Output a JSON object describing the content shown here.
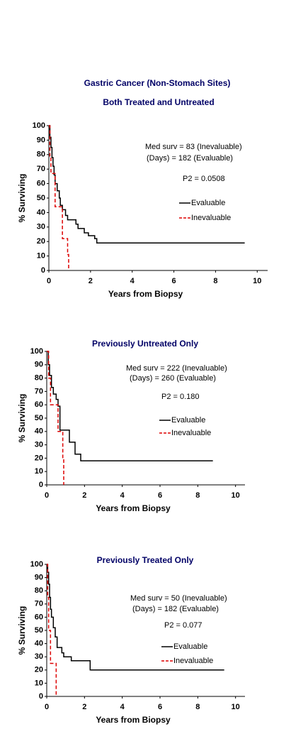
{
  "title": "Gastric Cancer (Non-Stomach Sites)",
  "chart_data": [
    {
      "type": "line",
      "title": "Both Treated and Untreated",
      "x_label": "Years from Biopsy",
      "y_label": "% Surviving",
      "annotations": [
        "Med surv =   83  (Inevaluable)",
        "(Days)   =   182 (Evaluable)",
        "P2 = 0.0508"
      ],
      "xlim": [
        0,
        10.5
      ],
      "ylim": [
        0,
        100
      ],
      "xticks": [
        0,
        2,
        4,
        6,
        8,
        10
      ],
      "yticks": [
        0,
        10,
        20,
        30,
        40,
        50,
        60,
        70,
        80,
        90,
        100
      ],
      "series": [
        {
          "name": "Evaluable",
          "color": "#000000",
          "dashed": false,
          "x": [
            0,
            0.05,
            0.05,
            0.1,
            0.1,
            0.15,
            0.15,
            0.2,
            0.2,
            0.25,
            0.25,
            0.3,
            0.3,
            0.4,
            0.4,
            0.5,
            0.5,
            0.55,
            0.55,
            0.65,
            0.65,
            0.8,
            0.8,
            0.9,
            0.9,
            1.3,
            1.3,
            1.4,
            1.4,
            1.7,
            1.7,
            1.9,
            1.9,
            2.2,
            2.2,
            2.3,
            2.3,
            9.4
          ],
          "values": [
            100,
            100,
            92,
            92,
            85,
            85,
            78,
            78,
            72,
            72,
            66,
            66,
            60,
            60,
            55,
            55,
            50,
            50,
            45,
            45,
            42,
            42,
            38,
            38,
            35,
            35,
            32,
            32,
            29,
            29,
            26,
            26,
            24,
            24,
            22,
            22,
            19,
            19
          ]
        },
        {
          "name": "Inevaluable",
          "color": "#dd0000",
          "dashed": true,
          "x": [
            0,
            0.05,
            0.05,
            0.1,
            0.1,
            0.3,
            0.3,
            0.65,
            0.65,
            0.9,
            0.9,
            0.95,
            0.95
          ],
          "values": [
            100,
            100,
            78,
            78,
            67,
            67,
            44,
            44,
            22,
            22,
            11,
            11,
            0
          ]
        }
      ]
    },
    {
      "type": "line",
      "title": "Previously Untreated Only",
      "x_label": "Years from Biopsy",
      "y_label": "% Surviving",
      "annotations": [
        "Med surv =   222 (Inevaluable)",
        "(Days)   =   260 (Evaluable)",
        "P2 = 0.180"
      ],
      "xlim": [
        0,
        10.5
      ],
      "ylim": [
        0,
        100
      ],
      "xticks": [
        0,
        2,
        4,
        6,
        8,
        10
      ],
      "yticks": [
        0,
        10,
        20,
        30,
        40,
        50,
        60,
        70,
        80,
        90,
        100
      ],
      "series": [
        {
          "name": "Evaluable",
          "color": "#000000",
          "dashed": false,
          "x": [
            0,
            0.08,
            0.08,
            0.15,
            0.15,
            0.25,
            0.25,
            0.35,
            0.35,
            0.5,
            0.5,
            0.6,
            0.6,
            0.7,
            0.7,
            1.2,
            1.2,
            1.5,
            1.5,
            1.8,
            1.8,
            8.8
          ],
          "values": [
            100,
            100,
            90,
            90,
            82,
            82,
            73,
            73,
            68,
            68,
            64,
            64,
            59,
            59,
            41,
            41,
            32,
            32,
            23,
            23,
            18,
            18
          ]
        },
        {
          "name": "Inevaluable",
          "color": "#dd0000",
          "dashed": true,
          "x": [
            0,
            0.1,
            0.1,
            0.2,
            0.2,
            0.6,
            0.6,
            0.85,
            0.85,
            0.9,
            0.9
          ],
          "values": [
            100,
            100,
            80,
            80,
            60,
            60,
            40,
            40,
            20,
            20,
            0
          ]
        }
      ]
    },
    {
      "type": "line",
      "title": "Previously Treated Only",
      "x_label": "Years from Biopsy",
      "y_label": "% Surviving",
      "annotations": [
        "Med surv =   50 (Inevaluable)",
        "(Days)   =   182 (Evaluable)",
        "P2 = 0.077"
      ],
      "xlim": [
        0,
        10.5
      ],
      "ylim": [
        0,
        100
      ],
      "xticks": [
        0,
        2,
        4,
        6,
        8,
        10
      ],
      "yticks": [
        0,
        10,
        20,
        30,
        40,
        50,
        60,
        70,
        80,
        90,
        100
      ],
      "series": [
        {
          "name": "Evaluable",
          "color": "#000000",
          "dashed": false,
          "x": [
            0,
            0.05,
            0.05,
            0.1,
            0.1,
            0.15,
            0.15,
            0.2,
            0.2,
            0.25,
            0.25,
            0.35,
            0.35,
            0.45,
            0.45,
            0.55,
            0.55,
            0.8,
            0.8,
            0.9,
            0.9,
            1.3,
            1.3,
            2.3,
            2.3,
            9.4
          ],
          "values": [
            100,
            100,
            94,
            94,
            85,
            85,
            75,
            75,
            66,
            66,
            60,
            60,
            52,
            52,
            45,
            45,
            37,
            37,
            33,
            33,
            30,
            30,
            27,
            27,
            20,
            20
          ]
        },
        {
          "name": "Inevaluable",
          "color": "#dd0000",
          "dashed": true,
          "x": [
            0,
            0.05,
            0.05,
            0.1,
            0.1,
            0.2,
            0.2,
            0.5,
            0.5
          ],
          "values": [
            100,
            100,
            75,
            75,
            50,
            50,
            25,
            25,
            0
          ]
        }
      ]
    }
  ]
}
